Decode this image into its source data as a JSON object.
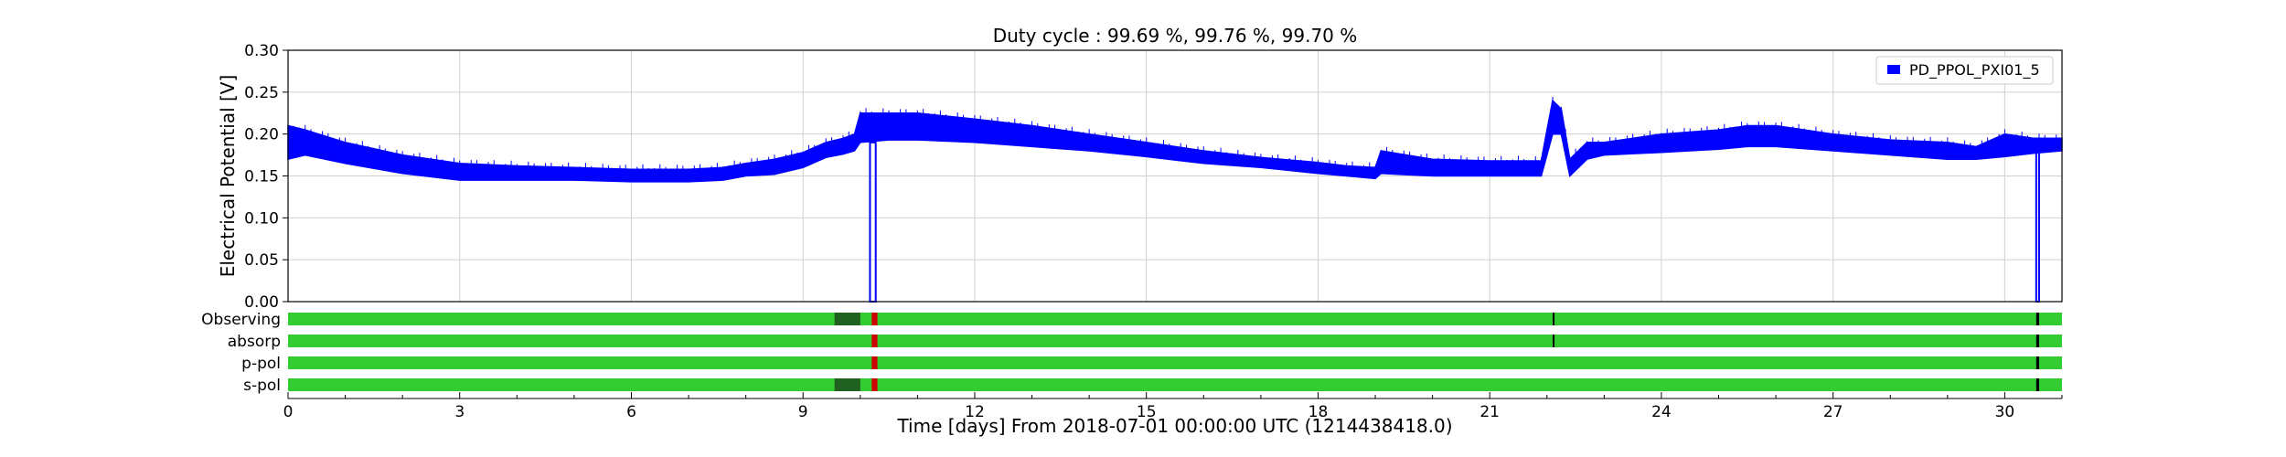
{
  "chart_data": {
    "type": "line",
    "title": "Duty cycle : 99.69 %, 99.76 %, 99.70 %",
    "xlabel": "Time [days] From 2018-07-01 00:00:00 UTC (1214438418.0)",
    "ylabel": "Electrical Potential [V]",
    "xlim": [
      0,
      31
    ],
    "ylim": [
      0,
      0.3
    ],
    "x_ticks": [
      0,
      3,
      6,
      9,
      12,
      15,
      18,
      21,
      24,
      27,
      30
    ],
    "x_tick_labels": [
      "0",
      "3",
      "6",
      "9",
      "12",
      "15",
      "18",
      "21",
      "24",
      "27",
      "30"
    ],
    "y_ticks": [
      0,
      0.05,
      0.1,
      0.15,
      0.2,
      0.25,
      0.3
    ],
    "y_tick_labels": [
      "0.00",
      "0.05",
      "0.10",
      "0.15",
      "0.20",
      "0.25",
      "0.30"
    ],
    "grid": true,
    "legend_position": "top-right",
    "series": [
      {
        "name": "PD_PPOL_PXI01_5",
        "color": "#0000ff",
        "x": [
          0,
          0.3,
          1,
          2,
          3,
          4,
          5,
          6,
          7,
          7.6,
          8,
          8.5,
          9,
          9.4,
          9.7,
          9.9,
          10.0,
          10.5,
          11,
          12,
          13,
          14,
          15,
          16,
          17,
          18,
          18.5,
          19.0,
          19.1,
          20,
          21,
          21.9,
          22.0,
          22.1,
          22.25,
          22.4,
          22.7,
          23,
          24,
          25,
          25.5,
          26,
          27,
          28,
          29,
          29.5,
          30,
          30.5,
          31
        ],
        "lower": [
          0.17,
          0.175,
          0.165,
          0.153,
          0.145,
          0.145,
          0.145,
          0.143,
          0.143,
          0.145,
          0.15,
          0.152,
          0.16,
          0.172,
          0.176,
          0.18,
          0.19,
          0.193,
          0.193,
          0.19,
          0.185,
          0.18,
          0.173,
          0.165,
          0.16,
          0.153,
          0.15,
          0.147,
          0.153,
          0.15,
          0.15,
          0.15,
          0.175,
          0.2,
          0.2,
          0.15,
          0.17,
          0.175,
          0.178,
          0.182,
          0.185,
          0.185,
          0.18,
          0.175,
          0.17,
          0.17,
          0.173,
          0.177,
          0.18
        ],
        "upper": [
          0.21,
          0.205,
          0.19,
          0.175,
          0.165,
          0.162,
          0.16,
          0.158,
          0.158,
          0.16,
          0.165,
          0.17,
          0.178,
          0.19,
          0.195,
          0.2,
          0.225,
          0.225,
          0.225,
          0.218,
          0.21,
          0.2,
          0.19,
          0.18,
          0.172,
          0.166,
          0.162,
          0.16,
          0.18,
          0.17,
          0.168,
          0.168,
          0.205,
          0.24,
          0.23,
          0.17,
          0.19,
          0.19,
          0.2,
          0.205,
          0.21,
          0.21,
          0.2,
          0.193,
          0.19,
          0.185,
          0.2,
          0.195,
          0.195
        ],
        "dropouts": [
          {
            "x_start": 10.17,
            "x_end": 10.27,
            "value": 0.0
          },
          {
            "x_start": 30.55,
            "x_end": 30.6,
            "value": 0.0
          }
        ]
      }
    ],
    "state_rows": [
      {
        "name": "Observing",
        "color": "#33cc33",
        "marks": [
          {
            "x": 9.55,
            "w": 0.45,
            "color": "#1f5f1f"
          },
          {
            "x": 10.2,
            "w": 0.1,
            "color": "#cc0000"
          },
          {
            "x": 22.1,
            "w": 0.03,
            "color": "#000000"
          },
          {
            "x": 30.55,
            "w": 0.05,
            "color": "#000000"
          }
        ]
      },
      {
        "name": "absorp",
        "color": "#33cc33",
        "marks": [
          {
            "x": 10.2,
            "w": 0.1,
            "color": "#cc0000"
          },
          {
            "x": 22.1,
            "w": 0.03,
            "color": "#000000"
          },
          {
            "x": 30.55,
            "w": 0.05,
            "color": "#000000"
          }
        ]
      },
      {
        "name": "p-pol",
        "color": "#33cc33",
        "marks": [
          {
            "x": 10.2,
            "w": 0.1,
            "color": "#cc0000"
          },
          {
            "x": 30.55,
            "w": 0.05,
            "color": "#000000"
          }
        ]
      },
      {
        "name": "s-pol",
        "color": "#33cc33",
        "marks": [
          {
            "x": 9.55,
            "w": 0.45,
            "color": "#1f5f1f"
          },
          {
            "x": 10.2,
            "w": 0.1,
            "color": "#cc0000"
          },
          {
            "x": 30.55,
            "w": 0.05,
            "color": "#000000"
          }
        ]
      }
    ]
  }
}
